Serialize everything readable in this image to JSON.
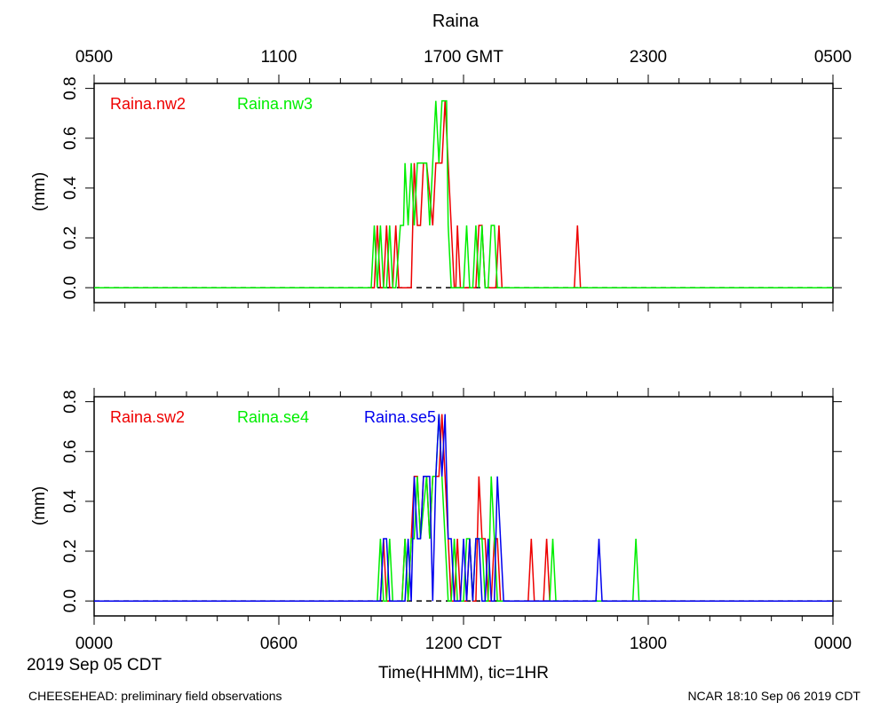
{
  "title": "Raina",
  "top_axis": {
    "ticks": [
      "0500",
      "1100",
      "1700 GMT",
      "2300",
      "0500"
    ]
  },
  "bottom_axis": {
    "ticks": [
      "0000",
      "0600",
      "1200 CDT",
      "1800",
      "0000"
    ],
    "date_label": "2019 Sep 05 CDT",
    "xlabel": "Time(HHMM), tic=1HR"
  },
  "footer": {
    "left": "CHEESEHEAD: preliminary field observations",
    "right": "NCAR 18:10 Sep 06 2019 CDT"
  },
  "colors": {
    "red": "#ee0000",
    "green": "#00ee00",
    "blue": "#0000ee"
  },
  "chart_data": [
    {
      "type": "line",
      "ylabel": "(mm)",
      "xlim": [
        0,
        24
      ],
      "ylim": [
        -0.06,
        0.82
      ],
      "yticks": [
        "0.0",
        "0.2",
        "0.4",
        "0.6",
        "0.8"
      ],
      "x_unit": "hours CDT",
      "series": [
        {
          "name": "Raina.nw2",
          "color": "#ee0000",
          "points": [
            [
              0,
              0
            ],
            [
              9.1,
              0
            ],
            [
              9.2,
              0.25
            ],
            [
              9.3,
              0
            ],
            [
              9.4,
              0
            ],
            [
              9.5,
              0.25
            ],
            [
              9.6,
              0
            ],
            [
              9.7,
              0
            ],
            [
              9.8,
              0.25
            ],
            [
              9.9,
              0
            ],
            [
              10.3,
              0
            ],
            [
              10.4,
              0.5
            ],
            [
              10.5,
              0.25
            ],
            [
              10.6,
              0.25
            ],
            [
              10.7,
              0.5
            ],
            [
              10.8,
              0.5
            ],
            [
              11.0,
              0.25
            ],
            [
              11.1,
              0.5
            ],
            [
              11.3,
              0.5
            ],
            [
              11.4,
              0.75
            ],
            [
              11.5,
              0.5
            ],
            [
              11.6,
              0.25
            ],
            [
              11.7,
              0
            ],
            [
              11.75,
              0
            ],
            [
              11.8,
              0.25
            ],
            [
              11.9,
              0
            ],
            [
              12.4,
              0
            ],
            [
              12.5,
              0.25
            ],
            [
              12.6,
              0.25
            ],
            [
              12.7,
              0
            ],
            [
              13.05,
              0
            ],
            [
              13.15,
              0.25
            ],
            [
              13.25,
              0
            ],
            [
              15.6,
              0
            ],
            [
              15.7,
              0.25
            ],
            [
              15.8,
              0
            ],
            [
              24,
              0
            ]
          ]
        },
        {
          "name": "Raina.nw3",
          "color": "#00ee00",
          "points": [
            [
              0,
              0
            ],
            [
              9.0,
              0
            ],
            [
              9.1,
              0.25
            ],
            [
              9.2,
              0
            ],
            [
              9.3,
              0.25
            ],
            [
              9.4,
              0
            ],
            [
              9.5,
              0
            ],
            [
              9.6,
              0.25
            ],
            [
              9.7,
              0
            ],
            [
              9.8,
              0
            ],
            [
              9.95,
              0.25
            ],
            [
              10.05,
              0.25
            ],
            [
              10.1,
              0.5
            ],
            [
              10.2,
              0.25
            ],
            [
              10.3,
              0.5
            ],
            [
              10.4,
              0.25
            ],
            [
              10.5,
              0.5
            ],
            [
              10.8,
              0.5
            ],
            [
              10.9,
              0.25
            ],
            [
              11.0,
              0.5
            ],
            [
              11.1,
              0.75
            ],
            [
              11.2,
              0.5
            ],
            [
              11.3,
              0.75
            ],
            [
              11.45,
              0.75
            ],
            [
              11.5,
              0.25
            ],
            [
              11.6,
              0
            ],
            [
              12.0,
              0
            ],
            [
              12.1,
              0.25
            ],
            [
              12.2,
              0
            ],
            [
              12.3,
              0
            ],
            [
              12.4,
              0.25
            ],
            [
              12.5,
              0
            ],
            [
              12.6,
              0.25
            ],
            [
              12.7,
              0
            ],
            [
              12.8,
              0
            ],
            [
              12.9,
              0.25
            ],
            [
              13.0,
              0.25
            ],
            [
              13.1,
              0
            ],
            [
              24,
              0
            ]
          ]
        }
      ]
    },
    {
      "type": "line",
      "ylabel": "(mm)",
      "xlim": [
        0,
        24
      ],
      "ylim": [
        -0.06,
        0.82
      ],
      "yticks": [
        "0.0",
        "0.2",
        "0.4",
        "0.6",
        "0.8"
      ],
      "x_unit": "hours CDT",
      "series": [
        {
          "name": "Raina.sw2",
          "color": "#ee0000",
          "points": [
            [
              0,
              0
            ],
            [
              9.3,
              0
            ],
            [
              9.4,
              0.25
            ],
            [
              9.5,
              0
            ],
            [
              9.6,
              0
            ],
            [
              9.7,
              0
            ],
            [
              10.0,
              0
            ],
            [
              10.1,
              0.25
            ],
            [
              10.2,
              0
            ],
            [
              10.3,
              0.25
            ],
            [
              10.4,
              0.5
            ],
            [
              10.5,
              0.5
            ],
            [
              10.6,
              0.25
            ],
            [
              10.7,
              0.5
            ],
            [
              10.8,
              0.5
            ],
            [
              10.9,
              0.25
            ],
            [
              11.0,
              0.5
            ],
            [
              11.2,
              0.5
            ],
            [
              11.3,
              0.75
            ],
            [
              11.4,
              0.5
            ],
            [
              11.5,
              0.25
            ],
            [
              11.6,
              0
            ],
            [
              11.7,
              0
            ],
            [
              11.8,
              0.25
            ],
            [
              11.9,
              0
            ],
            [
              12.1,
              0
            ],
            [
              12.2,
              0.25
            ],
            [
              12.3,
              0
            ],
            [
              12.4,
              0
            ],
            [
              12.5,
              0.5
            ],
            [
              12.6,
              0.25
            ],
            [
              12.7,
              0.25
            ],
            [
              12.8,
              0
            ],
            [
              12.9,
              0
            ],
            [
              13.0,
              0.25
            ],
            [
              13.1,
              0.25
            ],
            [
              13.2,
              0
            ],
            [
              14.1,
              0
            ],
            [
              14.2,
              0.25
            ],
            [
              14.3,
              0
            ],
            [
              14.6,
              0
            ],
            [
              14.7,
              0.25
            ],
            [
              14.8,
              0
            ],
            [
              24,
              0
            ]
          ]
        },
        {
          "name": "Raina.se4",
          "color": "#00ee00",
          "points": [
            [
              0,
              0
            ],
            [
              9.2,
              0
            ],
            [
              9.3,
              0.25
            ],
            [
              9.4,
              0
            ],
            [
              9.5,
              0
            ],
            [
              9.6,
              0.25
            ],
            [
              9.7,
              0
            ],
            [
              10.0,
              0
            ],
            [
              10.1,
              0.25
            ],
            [
              10.2,
              0
            ],
            [
              10.3,
              0.25
            ],
            [
              10.4,
              0.25
            ],
            [
              10.5,
              0.5
            ],
            [
              10.6,
              0.25
            ],
            [
              10.8,
              0.5
            ],
            [
              10.9,
              0.25
            ],
            [
              11.0,
              0.5
            ],
            [
              11.1,
              0.5
            ],
            [
              11.2,
              0.75
            ],
            [
              11.3,
              0.5
            ],
            [
              11.4,
              0.25
            ],
            [
              11.5,
              0
            ],
            [
              11.6,
              0
            ],
            [
              11.7,
              0.25
            ],
            [
              11.8,
              0
            ],
            [
              12.0,
              0
            ],
            [
              12.1,
              0.25
            ],
            [
              12.2,
              0.25
            ],
            [
              12.3,
              0
            ],
            [
              12.4,
              0.25
            ],
            [
              12.5,
              0.25
            ],
            [
              12.6,
              0.25
            ],
            [
              12.7,
              0
            ],
            [
              12.8,
              0
            ],
            [
              12.9,
              0.5
            ],
            [
              13.0,
              0.25
            ],
            [
              13.1,
              0
            ],
            [
              14.8,
              0
            ],
            [
              14.9,
              0.25
            ],
            [
              15.0,
              0
            ],
            [
              17.5,
              0
            ],
            [
              17.6,
              0.25
            ],
            [
              17.7,
              0
            ],
            [
              24,
              0
            ]
          ]
        },
        {
          "name": "Raina.se5",
          "color": "#0000ee",
          "points": [
            [
              0,
              0
            ],
            [
              9.3,
              0
            ],
            [
              9.4,
              0.25
            ],
            [
              9.5,
              0.25
            ],
            [
              9.6,
              0
            ],
            [
              10.1,
              0
            ],
            [
              10.2,
              0.25
            ],
            [
              10.3,
              0
            ],
            [
              10.4,
              0.5
            ],
            [
              10.5,
              0.25
            ],
            [
              10.6,
              0.25
            ],
            [
              10.7,
              0.5
            ],
            [
              10.9,
              0.5
            ],
            [
              11.0,
              0
            ],
            [
              11.1,
              0.5
            ],
            [
              11.2,
              0.75
            ],
            [
              11.3,
              0.5
            ],
            [
              11.4,
              0.75
            ],
            [
              11.5,
              0.25
            ],
            [
              11.6,
              0.25
            ],
            [
              11.7,
              0
            ],
            [
              11.9,
              0
            ],
            [
              12.0,
              0.25
            ],
            [
              12.1,
              0
            ],
            [
              12.2,
              0.25
            ],
            [
              12.3,
              0
            ],
            [
              12.4,
              0.25
            ],
            [
              12.5,
              0.25
            ],
            [
              12.6,
              0
            ],
            [
              12.7,
              0
            ],
            [
              12.8,
              0.25
            ],
            [
              12.9,
              0
            ],
            [
              13.0,
              0
            ],
            [
              13.1,
              0.5
            ],
            [
              13.2,
              0.25
            ],
            [
              13.3,
              0
            ],
            [
              16.3,
              0
            ],
            [
              16.4,
              0.25
            ],
            [
              16.5,
              0
            ],
            [
              24,
              0
            ]
          ]
        }
      ]
    }
  ]
}
